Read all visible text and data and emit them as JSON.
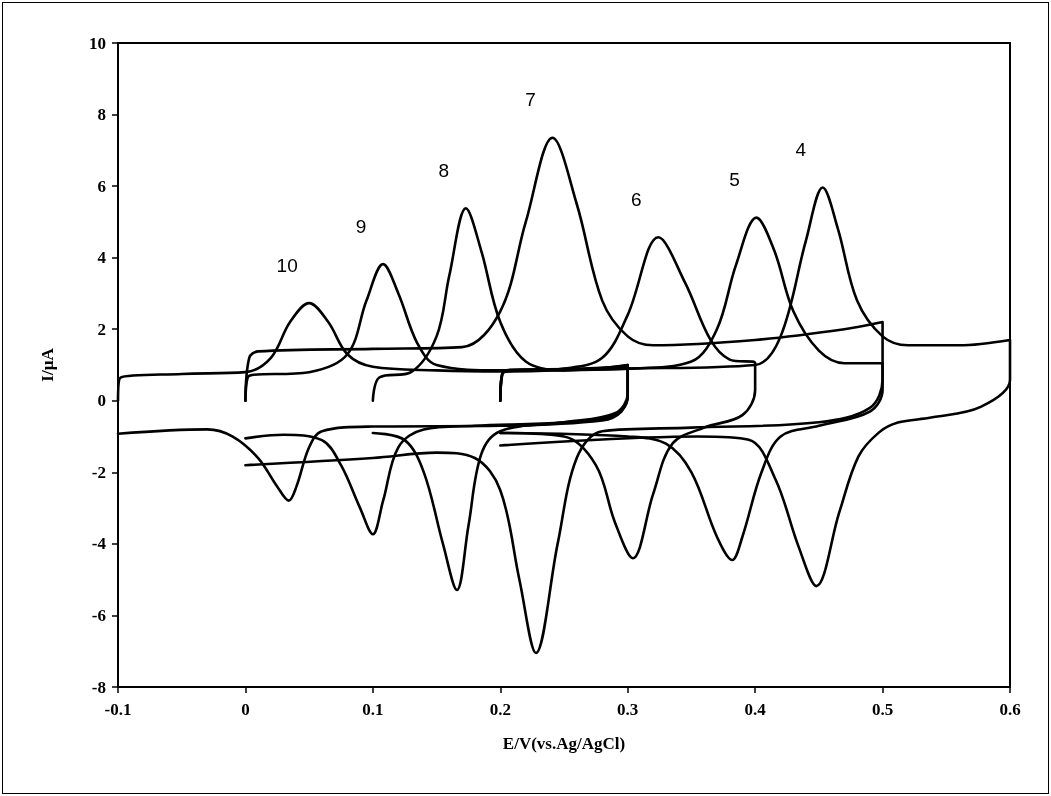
{
  "chart_data": {
    "type": "line",
    "xlabel": "E/V(vs.Ag/AgCl)",
    "ylabel": "I/µA",
    "xlim": [
      -0.1,
      0.6
    ],
    "xticks": [
      -0.1,
      0,
      0.1,
      0.2,
      0.3,
      0.4,
      0.5,
      0.6
    ],
    "ylim": [
      -8,
      10
    ],
    "yticks": [
      -8,
      -6,
      -4,
      -2,
      0,
      2,
      4,
      6,
      8,
      10
    ],
    "marker": "none",
    "line_style": "solid",
    "annotations": [
      "10",
      "9",
      "8",
      "7",
      "6",
      "5",
      "4"
    ],
    "series": [
      {
        "color": "#000000",
        "x": [
          -0.1,
          -0.098,
          -0.05,
          0,
          0.02,
          0.035,
          0.05,
          0.065,
          0.08,
          0.1,
          0.15,
          0.2,
          0.25,
          0.29,
          0.3,
          0.3,
          0.295,
          0.28,
          0.2,
          0.1,
          0.06,
          0.05,
          0.04,
          0.034,
          0.025,
          0.01,
          -0.01,
          -0.03,
          -0.1
        ],
        "values": [
          0,
          0.65,
          0.75,
          0.8,
          1.2,
          2.2,
          2.73,
          2.2,
          1.3,
          0.95,
          0.85,
          0.82,
          0.85,
          0.9,
          0.95,
          0.2,
          -0.3,
          -0.55,
          -0.7,
          -0.72,
          -0.85,
          -1.3,
          -2.4,
          -2.79,
          -2.4,
          -1.6,
          -1.0,
          -0.8,
          -0.92
        ]
      },
      {
        "color": "#000000",
        "x": [
          0,
          0.003,
          0.05,
          0.08,
          0.095,
          0.108,
          0.12,
          0.135,
          0.15,
          0.2,
          0.28,
          0.3,
          0.3,
          0.29,
          0.25,
          0.18,
          0.14,
          0.12,
          0.108,
          0.1,
          0.09,
          0.075,
          0.06,
          0.03,
          0
        ],
        "values": [
          0,
          0.7,
          0.8,
          1.3,
          2.8,
          3.82,
          3.0,
          1.6,
          1.0,
          0.85,
          0.92,
          1.0,
          0.1,
          -0.4,
          -0.6,
          -0.7,
          -0.8,
          -1.3,
          -2.8,
          -3.73,
          -3.0,
          -1.8,
          -1.1,
          -0.95,
          -1.05
        ]
      },
      {
        "color": "#000000",
        "x": [
          0.1,
          0.105,
          0.13,
          0.15,
          0.16,
          0.173,
          0.185,
          0.2,
          0.22,
          0.25,
          0.29,
          0.3,
          0.3,
          0.29,
          0.25,
          0.2,
          0.185,
          0.175,
          0.166,
          0.155,
          0.14,
          0.125,
          0.1
        ],
        "values": [
          0,
          0.65,
          0.8,
          1.8,
          3.5,
          5.38,
          4.2,
          2.2,
          1.1,
          0.85,
          0.95,
          1.0,
          0.2,
          -0.35,
          -0.6,
          -0.85,
          -1.5,
          -3.5,
          -5.29,
          -4.0,
          -2.0,
          -1.1,
          -0.9
        ]
      },
      {
        "color": "#000000",
        "x": [
          0,
          0.003,
          0.01,
          0.1,
          0.17,
          0.2,
          0.22,
          0.241,
          0.26,
          0.28,
          0.3,
          0.32,
          0.4,
          0.47,
          0.5,
          0.5,
          0.49,
          0.45,
          0.35,
          0.28,
          0.26,
          0.245,
          0.228,
          0.215,
          0.2,
          0.18,
          0.15,
          0.1,
          0
        ],
        "values": [
          0,
          1.2,
          1.38,
          1.45,
          1.5,
          2.5,
          5.0,
          7.35,
          5.5,
          2.8,
          1.8,
          1.55,
          1.7,
          2.0,
          2.2,
          0.6,
          -0.2,
          -0.6,
          -0.75,
          -0.85,
          -1.6,
          -4.0,
          -7.05,
          -5.0,
          -2.5,
          -1.6,
          -1.45,
          -1.6,
          -1.8
        ]
      },
      {
        "color": "#000000",
        "x": [
          0.2,
          0.203,
          0.25,
          0.28,
          0.3,
          0.324,
          0.345,
          0.365,
          0.38,
          0.4,
          0.4,
          0.39,
          0.36,
          0.335,
          0.32,
          0.304,
          0.29,
          0.275,
          0.25,
          0.2
        ],
        "values": [
          0,
          0.8,
          0.9,
          1.2,
          2.4,
          4.57,
          3.3,
          1.7,
          1.15,
          1.05,
          0.3,
          -0.4,
          -0.75,
          -1.2,
          -2.6,
          -4.4,
          -3.4,
          -1.8,
          -1.0,
          -0.9
        ]
      },
      {
        "color": "#000000",
        "x": [
          0.2,
          0.203,
          0.3,
          0.35,
          0.37,
          0.385,
          0.401,
          0.415,
          0.43,
          0.45,
          0.47,
          0.5,
          0.5,
          0.49,
          0.45,
          0.42,
          0.405,
          0.39,
          0.382,
          0.37,
          0.35,
          0.33,
          0.3,
          0.2
        ],
        "values": [
          0,
          0.85,
          0.9,
          1.1,
          2.0,
          3.8,
          5.12,
          4.2,
          2.5,
          1.4,
          1.05,
          1.05,
          0.3,
          -0.3,
          -0.7,
          -1.0,
          -2.0,
          -3.8,
          -4.45,
          -3.8,
          -2.0,
          -1.2,
          -1.0,
          -0.9
        ]
      },
      {
        "color": "#000000",
        "x": [
          0.2,
          0.203,
          0.3,
          0.4,
          0.42,
          0.44,
          0.453,
          0.465,
          0.48,
          0.5,
          0.52,
          0.56,
          0.6,
          0.6,
          0.577,
          0.538,
          0.512,
          0.497,
          0.481,
          0.466,
          0.448,
          0.434,
          0.416,
          0.395,
          0.355,
          0.2
        ],
        "values": [
          0,
          0.85,
          0.9,
          1.0,
          1.8,
          4.5,
          5.96,
          4.8,
          2.8,
          1.8,
          1.55,
          1.55,
          1.7,
          0.58,
          -0.17,
          -0.47,
          -0.61,
          -0.89,
          -1.56,
          -3.12,
          -5.18,
          -4.07,
          -2.2,
          -1.09,
          -1.0,
          -1.25
        ]
      }
    ]
  }
}
